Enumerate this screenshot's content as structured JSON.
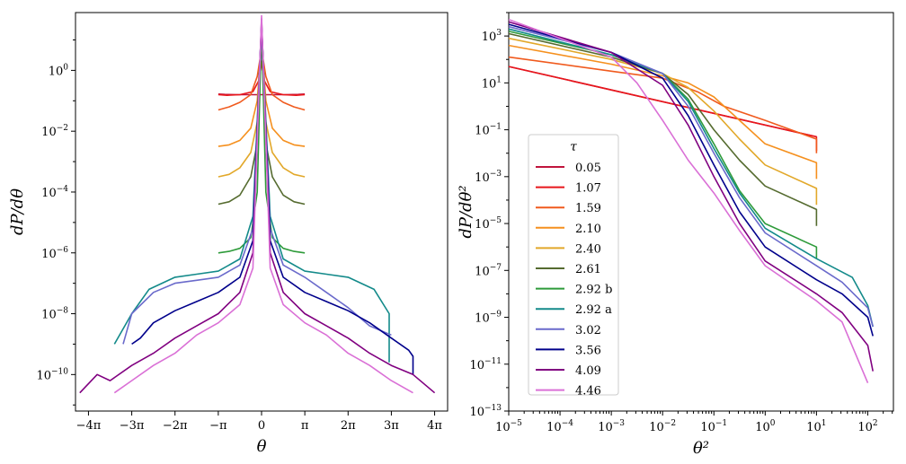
{
  "chart_data": [
    {
      "type": "line",
      "xscale": "linear",
      "yscale": "log",
      "xlabel": "θ",
      "ylabel": "dP/dθ",
      "xlim": [
        -4.3,
        4.3
      ],
      "ylim_log10": [
        -11.2,
        1.9
      ],
      "x_ticks": [
        {
          "value": -4,
          "label": "−4π"
        },
        {
          "value": -3,
          "label": "−3π"
        },
        {
          "value": -2,
          "label": "−2π"
        },
        {
          "value": -1,
          "label": "−π"
        },
        {
          "value": 0,
          "label": "0"
        },
        {
          "value": 1,
          "label": "π"
        },
        {
          "value": 2,
          "label": "2π"
        },
        {
          "value": 3,
          "label": "3π"
        },
        {
          "value": 4,
          "label": "4π"
        }
      ],
      "y_ticks": [
        {
          "exp": 0,
          "base": "10",
          "sup": "0"
        },
        {
          "exp": -2,
          "base": "10",
          "sup": "−2"
        },
        {
          "exp": -4,
          "base": "10",
          "sup": "−4"
        },
        {
          "exp": -6,
          "base": "10",
          "sup": "−6"
        },
        {
          "exp": -8,
          "base": "10",
          "sup": "−8"
        },
        {
          "exp": -10,
          "base": "10",
          "sup": "−10"
        }
      ],
      "x_unit": "π (x values in multiples of π)",
      "series": [
        {
          "name": "0.05",
          "color": "#c0143c",
          "x": [
            -1,
            -0.85,
            -0.5,
            -0.2,
            -0.05,
            0,
            0.05,
            0.2,
            0.5,
            0.85,
            1
          ],
          "log10y": [
            -0.78,
            -0.79,
            -0.8,
            -0.8,
            -0.8,
            -0.8,
            -0.8,
            -0.8,
            -0.8,
            -0.79,
            -0.78
          ]
        },
        {
          "name": "1.07",
          "color": "#e8161b",
          "x": [
            -1,
            -0.8,
            -0.5,
            -0.2,
            -0.05,
            0,
            0.05,
            0.2,
            0.5,
            0.8,
            1
          ],
          "log10y": [
            -0.8,
            -0.82,
            -0.8,
            -0.7,
            -0.3,
            0.3,
            -0.3,
            -0.7,
            -0.8,
            -0.82,
            -0.8
          ]
        },
        {
          "name": "1.59",
          "color": "#f05a1e",
          "x": [
            -1,
            -0.75,
            -0.5,
            -0.25,
            -0.1,
            0,
            0.1,
            0.25,
            0.5,
            0.75,
            1
          ],
          "log10y": [
            -1.3,
            -1.2,
            -1.05,
            -0.8,
            -0.2,
            0.7,
            -0.2,
            -0.8,
            -1.05,
            -1.2,
            -1.3
          ]
        },
        {
          "name": "2.10",
          "color": "#f5901e",
          "x": [
            -1,
            -0.75,
            -0.5,
            -0.25,
            -0.1,
            0,
            0.1,
            0.25,
            0.5,
            0.75,
            1
          ],
          "log10y": [
            -2.5,
            -2.45,
            -2.3,
            -1.9,
            -1.0,
            1.0,
            -1.0,
            -1.9,
            -2.3,
            -2.45,
            -2.5
          ]
        },
        {
          "name": "2.40",
          "color": "#e2a82a",
          "x": [
            -1,
            -0.75,
            -0.5,
            -0.25,
            -0.1,
            0,
            0.1,
            0.25,
            0.5,
            0.75,
            1
          ],
          "log10y": [
            -3.5,
            -3.42,
            -3.2,
            -2.7,
            -1.7,
            1.2,
            -1.7,
            -2.7,
            -3.2,
            -3.42,
            -3.5
          ]
        },
        {
          "name": "2.61",
          "color": "#556b2f",
          "x": [
            -1,
            -0.75,
            -0.5,
            -0.25,
            -0.1,
            0,
            0.1,
            0.25,
            0.5,
            0.75,
            1
          ],
          "log10y": [
            -4.4,
            -4.32,
            -4.1,
            -3.5,
            -2.4,
            1.3,
            -2.4,
            -3.5,
            -4.1,
            -4.32,
            -4.4
          ]
        },
        {
          "name": "2.92 b",
          "color": "#2e9b3a",
          "x": [
            -1,
            -0.75,
            -0.5,
            -0.25,
            -0.1,
            0,
            0.1,
            0.25,
            0.5,
            0.75,
            1
          ],
          "log10y": [
            -6.0,
            -5.95,
            -5.85,
            -5.5,
            -4.0,
            1.4,
            -4.0,
            -5.5,
            -5.85,
            -5.95,
            -6.0
          ]
        },
        {
          "name": "2.92 a",
          "color": "#138a8a",
          "x": [
            -3.4,
            -3.0,
            -2.6,
            -2.0,
            -1.5,
            -1.0,
            -0.5,
            -0.2,
            0,
            0.2,
            0.5,
            1.0,
            1.5,
            2.0,
            2.6,
            2.95,
            2.95
          ],
          "log10y": [
            -9.0,
            -8.0,
            -7.2,
            -6.8,
            -6.7,
            -6.6,
            -6.2,
            -4.8,
            1.5,
            -4.8,
            -6.2,
            -6.6,
            -6.7,
            -6.8,
            -7.2,
            -8.0,
            -9.6
          ]
        },
        {
          "name": "3.02",
          "color": "#6a6acb",
          "x": [
            -3.2,
            -3.0,
            -2.5,
            -2.0,
            -1.5,
            -1.0,
            -0.5,
            -0.2,
            0,
            0.2,
            0.5,
            1.0,
            1.5,
            2.0,
            2.5,
            3.0
          ],
          "log10y": [
            -9.0,
            -8.0,
            -7.3,
            -7.0,
            -6.9,
            -6.8,
            -6.4,
            -5.2,
            1.5,
            -5.2,
            -6.4,
            -6.8,
            -7.3,
            -7.8,
            -8.4,
            -8.7
          ]
        },
        {
          "name": "3.56",
          "color": "#00008b",
          "x": [
            -3.0,
            -2.8,
            -2.5,
            -2.0,
            -1.5,
            -1.0,
            -0.5,
            -0.2,
            0,
            0.2,
            0.5,
            1.0,
            1.5,
            2.0,
            2.5,
            3.0,
            3.4,
            3.5,
            3.5
          ],
          "log10y": [
            -9.0,
            -8.8,
            -8.3,
            -7.9,
            -7.6,
            -7.3,
            -6.8,
            -5.6,
            1.6,
            -5.6,
            -6.8,
            -7.3,
            -7.6,
            -7.9,
            -8.3,
            -8.8,
            -9.2,
            -9.4,
            -10.0
          ]
        },
        {
          "name": "4.09",
          "color": "#800080",
          "x": [
            -4.2,
            -3.8,
            -3.5,
            -3.0,
            -2.5,
            -2.0,
            -1.5,
            -1.0,
            -0.5,
            -0.2,
            0,
            0.2,
            0.5,
            1.0,
            1.5,
            2.0,
            2.5,
            3.0,
            3.5,
            4.0
          ],
          "log10y": [
            -10.6,
            -10.0,
            -10.2,
            -9.7,
            -9.3,
            -8.8,
            -8.4,
            -8.0,
            -7.3,
            -6.0,
            1.7,
            -6.0,
            -7.3,
            -8.0,
            -8.4,
            -8.8,
            -9.3,
            -9.7,
            -10.0,
            -10.6
          ]
        },
        {
          "name": "4.46",
          "color": "#da70d6",
          "x": [
            -3.4,
            -3.0,
            -2.5,
            -2.0,
            -1.5,
            -1.0,
            -0.5,
            -0.2,
            0,
            0.2,
            0.5,
            1.0,
            1.5,
            2.0,
            2.5,
            3.0,
            3.5
          ],
          "log10y": [
            -10.6,
            -10.2,
            -9.7,
            -9.3,
            -8.7,
            -8.3,
            -7.7,
            -6.5,
            1.8,
            -6.5,
            -7.7,
            -8.3,
            -8.7,
            -9.3,
            -9.7,
            -10.2,
            -10.6
          ]
        }
      ]
    },
    {
      "type": "line",
      "xscale": "log",
      "yscale": "log",
      "xlabel": "θ²",
      "ylabel": "dP/dθ²",
      "xlim_log10": [
        -5,
        2.5
      ],
      "ylim_log10": [
        -13,
        4
      ],
      "x_ticks": [
        {
          "exp": -5,
          "sup": "−5"
        },
        {
          "exp": -4,
          "sup": "−4"
        },
        {
          "exp": -3,
          "sup": "−3"
        },
        {
          "exp": -2,
          "sup": "−2"
        },
        {
          "exp": -1,
          "sup": "−1"
        },
        {
          "exp": 0,
          "sup": "0"
        },
        {
          "exp": 1,
          "sup": "1"
        },
        {
          "exp": 2,
          "sup": "2"
        }
      ],
      "y_ticks": [
        {
          "exp": 3,
          "sup": "3"
        },
        {
          "exp": 1,
          "sup": "1"
        },
        {
          "exp": -1,
          "sup": "−1"
        },
        {
          "exp": -3,
          "sup": "−3"
        },
        {
          "exp": -5,
          "sup": "−5"
        },
        {
          "exp": -7,
          "sup": "−7"
        },
        {
          "exp": -9,
          "sup": "−9"
        },
        {
          "exp": -11,
          "sup": "−11"
        },
        {
          "exp": -13,
          "sup": "−13"
        }
      ],
      "legend": {
        "title": "τ",
        "position": "center-left"
      },
      "series": [
        {
          "name": "0.05",
          "color": "#c0143c",
          "log10x": [
            -5,
            1
          ],
          "log10y": [
            1.7,
            -1.3
          ]
        },
        {
          "name": "1.07",
          "color": "#e8161b",
          "log10x": [
            -5,
            -3,
            -1,
            1,
            1,
            1
          ],
          "log10y": [
            1.7,
            0.7,
            -0.3,
            -1.3,
            -1.3,
            -1.9
          ]
        },
        {
          "name": "1.59",
          "color": "#f05a1e",
          "log10x": [
            -5,
            -3,
            -2,
            -1.3,
            -0.8,
            0,
            1,
            1
          ],
          "log10y": [
            2.1,
            1.5,
            1.2,
            0.6,
            0.0,
            -0.6,
            -1.4,
            -2.0
          ]
        },
        {
          "name": "2.10",
          "color": "#f5901e",
          "log10x": [
            -5,
            -3,
            -2,
            -1.5,
            -1.0,
            -0.5,
            0,
            1,
            1
          ],
          "log10y": [
            2.6,
            1.8,
            1.3,
            1.0,
            0.4,
            -0.6,
            -1.6,
            -2.4,
            -3.1
          ]
        },
        {
          "name": "2.40",
          "color": "#e2a82a",
          "log10x": [
            -5,
            -3,
            -2,
            -1.5,
            -1.0,
            -0.5,
            0,
            1,
            1
          ],
          "log10y": [
            2.9,
            2.0,
            1.4,
            0.8,
            -0.2,
            -1.4,
            -2.5,
            -3.5,
            -4.2
          ]
        },
        {
          "name": "2.61",
          "color": "#556b2f",
          "log10x": [
            -5,
            -3,
            -2,
            -1.5,
            -1.0,
            -0.5,
            0,
            1,
            1
          ],
          "log10y": [
            3.1,
            2.1,
            1.4,
            0.5,
            -1.0,
            -2.3,
            -3.4,
            -4.4,
            -5.1
          ]
        },
        {
          "name": "2.92 b",
          "color": "#2e9b3a",
          "log10x": [
            -5,
            -3,
            -2,
            -1.5,
            -1.0,
            -0.5,
            0,
            1,
            1
          ],
          "log10y": [
            3.2,
            2.2,
            1.4,
            0.3,
            -1.6,
            -3.6,
            -5.0,
            -6.0,
            -6.5
          ]
        },
        {
          "name": "2.92 a",
          "color": "#138a8a",
          "log10x": [
            -5,
            -3,
            -2,
            -1.5,
            -1.0,
            -0.5,
            0,
            1,
            1.7,
            2.0,
            2.1
          ],
          "log10y": [
            3.3,
            2.2,
            1.4,
            0.2,
            -1.8,
            -3.7,
            -5.2,
            -6.5,
            -7.3,
            -8.5,
            -9.4
          ]
        },
        {
          "name": "3.02",
          "color": "#6a6acb",
          "log10x": [
            -5,
            -3,
            -2,
            -1.5,
            -1.0,
            -0.5,
            0,
            1,
            1.5,
            2.0,
            2.1
          ],
          "log10y": [
            3.4,
            2.3,
            1.4,
            0.0,
            -2.0,
            -3.9,
            -5.4,
            -6.8,
            -7.5,
            -8.6,
            -9.4
          ]
        },
        {
          "name": "3.56",
          "color": "#00008b",
          "log10x": [
            -5,
            -3,
            -2,
            -1.5,
            -1.0,
            -0.5,
            0,
            1,
            1.5,
            2.0,
            2.1
          ],
          "log10y": [
            3.5,
            2.3,
            1.2,
            -0.4,
            -2.5,
            -4.5,
            -6.0,
            -7.4,
            -8.0,
            -9.0,
            -9.8
          ]
        },
        {
          "name": "4.09",
          "color": "#800080",
          "log10x": [
            -5,
            -3,
            -2,
            -1.5,
            -1.0,
            -0.5,
            0,
            1,
            1.5,
            2.0,
            2.1
          ],
          "log10y": [
            3.6,
            2.3,
            0.9,
            -0.8,
            -3.0,
            -5.0,
            -6.6,
            -8.0,
            -8.8,
            -10.2,
            -11.3
          ]
        },
        {
          "name": "4.46",
          "color": "#da70d6",
          "log10x": [
            -5,
            -3,
            -2.5,
            -2.0,
            -1.5,
            -1.0,
            -0.5,
            0,
            1,
            1.5,
            2.0
          ],
          "log10y": [
            3.7,
            2.1,
            1.0,
            -0.6,
            -2.3,
            -3.7,
            -5.3,
            -6.8,
            -8.3,
            -9.2,
            -11.8
          ]
        }
      ]
    }
  ]
}
